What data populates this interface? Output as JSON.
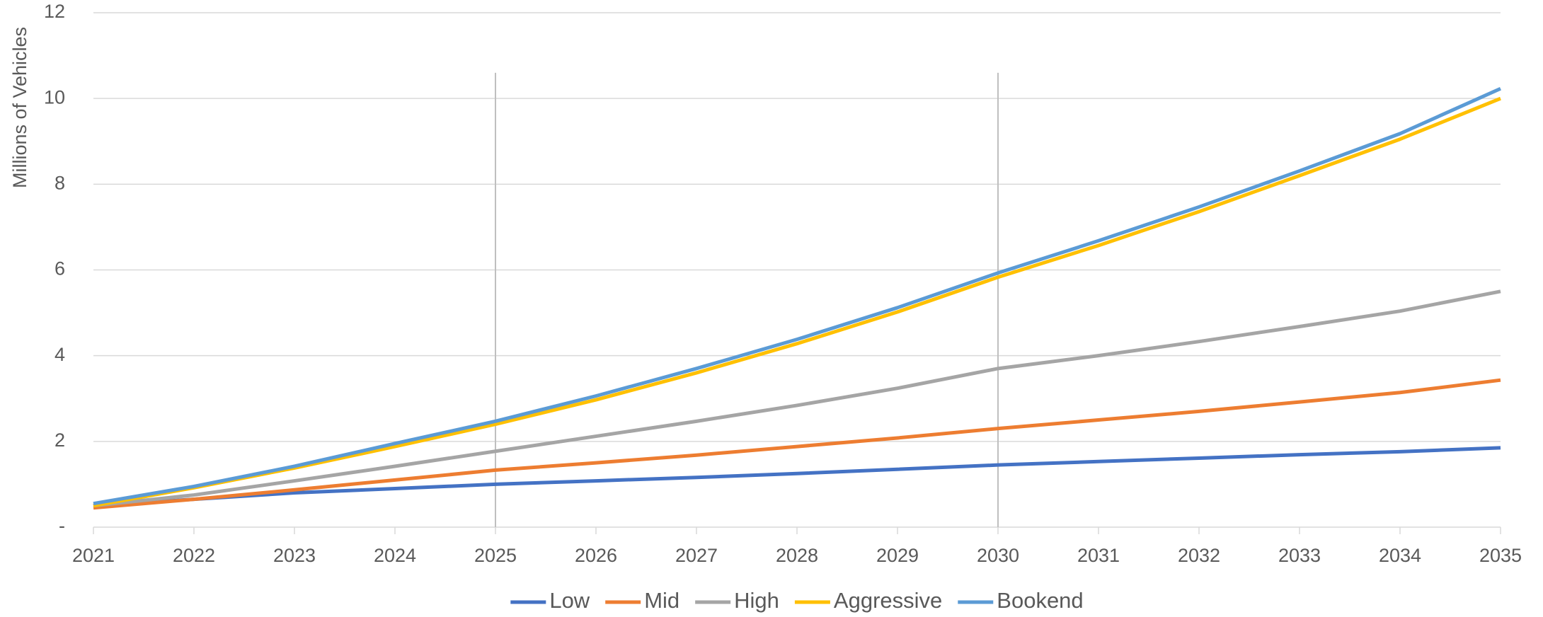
{
  "chart_data": {
    "type": "line",
    "y_axis_label": "Millions of Vehicles",
    "x": [
      2021,
      2022,
      2023,
      2024,
      2025,
      2026,
      2027,
      2028,
      2029,
      2030,
      2031,
      2032,
      2033,
      2034,
      2035
    ],
    "xlim": [
      2021,
      2035
    ],
    "ylim": [
      0,
      12
    ],
    "yticks": [
      {
        "value": 0,
        "label": "-"
      },
      2,
      4,
      6,
      8,
      10,
      12
    ],
    "grid": true,
    "legend": "bottom",
    "vlines": [
      2025,
      2030
    ],
    "vline_top": 10.6,
    "series": [
      {
        "name": "Low",
        "color": "#4472c4",
        "values": [
          0.5,
          0.65,
          0.8,
          0.9,
          1.0,
          1.08,
          1.16,
          1.25,
          1.35,
          1.45,
          1.53,
          1.61,
          1.69,
          1.76,
          1.85
        ]
      },
      {
        "name": "Mid",
        "color": "#ed7d31",
        "values": [
          0.45,
          0.65,
          0.87,
          1.1,
          1.33,
          1.5,
          1.68,
          1.88,
          2.08,
          2.3,
          2.5,
          2.7,
          2.92,
          3.14,
          3.43
        ]
      },
      {
        "name": "High",
        "color": "#a5a5a5",
        "values": [
          0.5,
          0.75,
          1.08,
          1.42,
          1.77,
          2.12,
          2.47,
          2.84,
          3.24,
          3.7,
          4.0,
          4.33,
          4.68,
          5.04,
          5.5
        ]
      },
      {
        "name": "Aggressive",
        "color": "#ffc000",
        "values": [
          0.5,
          0.92,
          1.38,
          1.88,
          2.4,
          2.97,
          3.6,
          4.28,
          5.02,
          5.83,
          6.57,
          7.36,
          8.2,
          9.05,
          10.0
        ]
      },
      {
        "name": "Bookend",
        "color": "#5b9bd5",
        "values": [
          0.55,
          0.95,
          1.42,
          1.95,
          2.47,
          3.06,
          3.7,
          4.38,
          5.12,
          5.93,
          6.68,
          7.47,
          8.31,
          9.18,
          10.23
        ]
      }
    ]
  }
}
